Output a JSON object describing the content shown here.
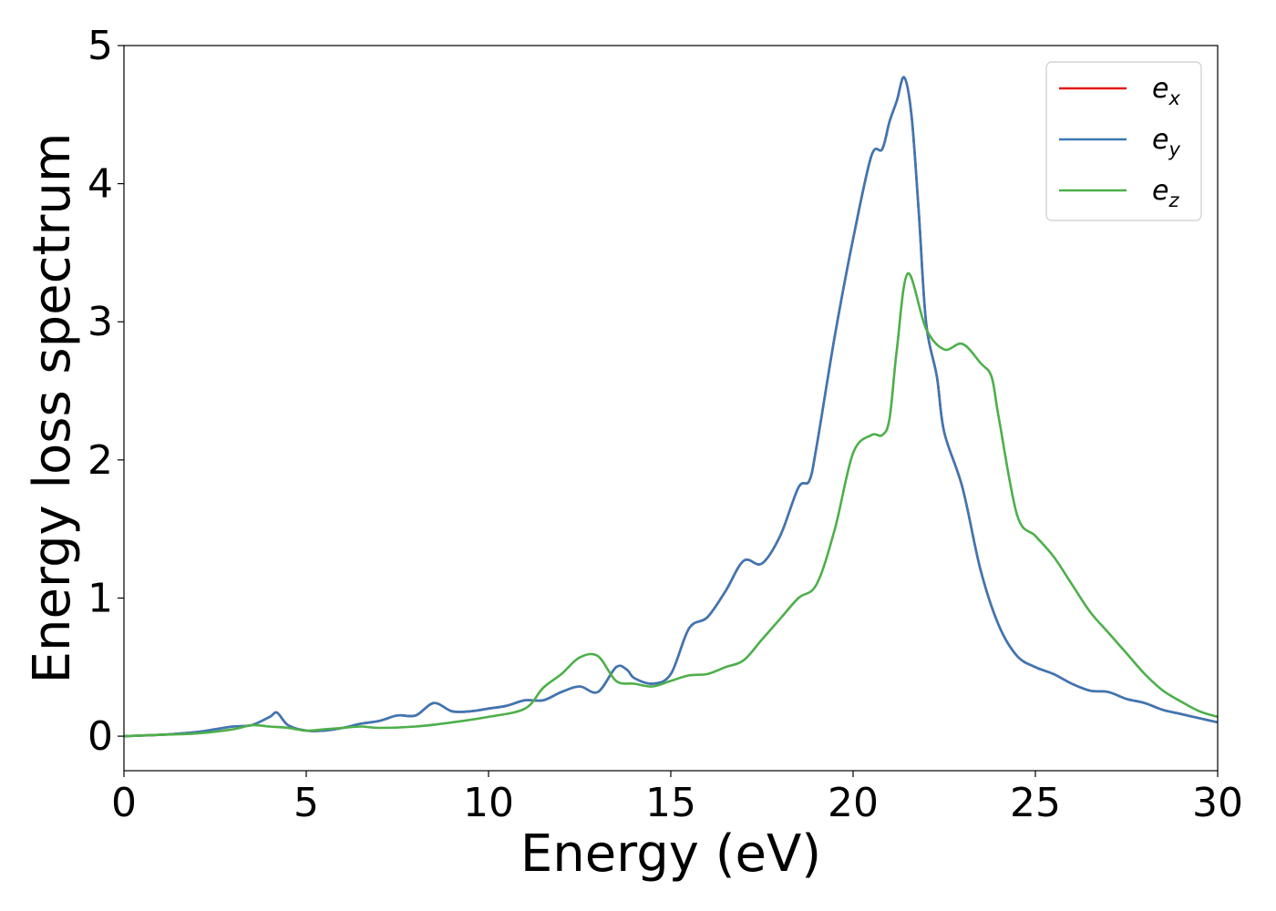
{
  "chart_data": {
    "type": "line",
    "xlabel": "Energy (eV)",
    "ylabel": "Energy loss spectrum",
    "xlim": [
      0,
      30
    ],
    "ylim": [
      -0.25,
      5.0
    ],
    "xticks": [
      "0",
      "5",
      "10",
      "15",
      "20",
      "25",
      "30"
    ],
    "yticks": [
      "0",
      "1",
      "2",
      "3",
      "4",
      "5"
    ],
    "grid": false,
    "legend_position": "top-right",
    "series": [
      {
        "name": "e_x",
        "symbol": "e",
        "subscript": "x",
        "color": "#e41a1c",
        "x": [
          0,
          1,
          2,
          2.5,
          3,
          3.5,
          4,
          4.2,
          4.5,
          5,
          5.5,
          6,
          6.5,
          7,
          7.5,
          8,
          8.5,
          9,
          9.5,
          10,
          10.5,
          11,
          11.5,
          12,
          12.5,
          13,
          13.5,
          13.8,
          14,
          14.5,
          15,
          15.5,
          16,
          16.5,
          17,
          17.5,
          18,
          18.5,
          18.8,
          19,
          19.5,
          20,
          20.5,
          20.8,
          21,
          21.2,
          21.4,
          21.6,
          21.8,
          22,
          22.3,
          22.5,
          23,
          23.5,
          24,
          24.5,
          25,
          25.5,
          26,
          26.5,
          27,
          27.5,
          28,
          28.5,
          29,
          29.5,
          30
        ],
        "values": [
          0,
          0.01,
          0.03,
          0.05,
          0.07,
          0.08,
          0.14,
          0.17,
          0.08,
          0.04,
          0.04,
          0.06,
          0.09,
          0.11,
          0.15,
          0.15,
          0.24,
          0.18,
          0.18,
          0.2,
          0.22,
          0.26,
          0.26,
          0.32,
          0.36,
          0.32,
          0.5,
          0.48,
          0.42,
          0.38,
          0.45,
          0.78,
          0.86,
          1.05,
          1.27,
          1.25,
          1.45,
          1.8,
          1.85,
          2.1,
          2.9,
          3.6,
          4.2,
          4.25,
          4.45,
          4.6,
          4.77,
          4.5,
          3.8,
          3.0,
          2.6,
          2.2,
          1.8,
          1.2,
          0.8,
          0.58,
          0.5,
          0.45,
          0.38,
          0.33,
          0.32,
          0.27,
          0.24,
          0.19,
          0.16,
          0.13,
          0.1
        ]
      },
      {
        "name": "e_y",
        "symbol": "e",
        "subscript": "y",
        "color": "#3a78b5",
        "x": [
          0,
          1,
          2,
          2.5,
          3,
          3.5,
          4,
          4.2,
          4.5,
          5,
          5.5,
          6,
          6.5,
          7,
          7.5,
          8,
          8.5,
          9,
          9.5,
          10,
          10.5,
          11,
          11.5,
          12,
          12.5,
          13,
          13.5,
          13.8,
          14,
          14.5,
          15,
          15.5,
          16,
          16.5,
          17,
          17.5,
          18,
          18.5,
          18.8,
          19,
          19.5,
          20,
          20.5,
          20.8,
          21,
          21.2,
          21.4,
          21.6,
          21.8,
          22,
          22.3,
          22.5,
          23,
          23.5,
          24,
          24.5,
          25,
          25.5,
          26,
          26.5,
          27,
          27.5,
          28,
          28.5,
          29,
          29.5,
          30
        ],
        "values": [
          0,
          0.01,
          0.03,
          0.05,
          0.07,
          0.08,
          0.14,
          0.17,
          0.08,
          0.04,
          0.04,
          0.06,
          0.09,
          0.11,
          0.15,
          0.15,
          0.24,
          0.18,
          0.18,
          0.2,
          0.22,
          0.26,
          0.26,
          0.32,
          0.36,
          0.32,
          0.5,
          0.48,
          0.42,
          0.38,
          0.45,
          0.78,
          0.86,
          1.05,
          1.27,
          1.25,
          1.45,
          1.8,
          1.85,
          2.1,
          2.9,
          3.6,
          4.2,
          4.25,
          4.45,
          4.6,
          4.77,
          4.5,
          3.8,
          3.0,
          2.6,
          2.2,
          1.8,
          1.2,
          0.8,
          0.58,
          0.5,
          0.45,
          0.38,
          0.33,
          0.32,
          0.27,
          0.24,
          0.19,
          0.16,
          0.13,
          0.1
        ]
      },
      {
        "name": "e_z",
        "symbol": "e",
        "subscript": "z",
        "color": "#4daf4a",
        "x": [
          0,
          1,
          2,
          3,
          3.5,
          4,
          4.5,
          5,
          5.5,
          6,
          6.5,
          7,
          8,
          9,
          10,
          11,
          11.5,
          12,
          12.5,
          13,
          13.5,
          14,
          14.5,
          15,
          15.5,
          16,
          16.5,
          17,
          17.5,
          18,
          18.5,
          19,
          19.5,
          20,
          20.5,
          20.8,
          21,
          21.2,
          21.5,
          22,
          22.5,
          23,
          23.5,
          23.8,
          24,
          24.5,
          25,
          25.5,
          26,
          26.5,
          27,
          27.5,
          28,
          28.5,
          29,
          29.5,
          30
        ],
        "values": [
          0,
          0.01,
          0.02,
          0.05,
          0.08,
          0.07,
          0.06,
          0.04,
          0.05,
          0.06,
          0.07,
          0.06,
          0.07,
          0.1,
          0.14,
          0.2,
          0.35,
          0.45,
          0.57,
          0.58,
          0.4,
          0.38,
          0.36,
          0.4,
          0.44,
          0.45,
          0.5,
          0.55,
          0.7,
          0.85,
          1.0,
          1.1,
          1.5,
          2.05,
          2.18,
          2.18,
          2.3,
          2.8,
          3.35,
          2.95,
          2.8,
          2.84,
          2.7,
          2.6,
          2.3,
          1.6,
          1.45,
          1.3,
          1.1,
          0.9,
          0.75,
          0.6,
          0.45,
          0.33,
          0.25,
          0.18,
          0.14
        ]
      }
    ]
  }
}
